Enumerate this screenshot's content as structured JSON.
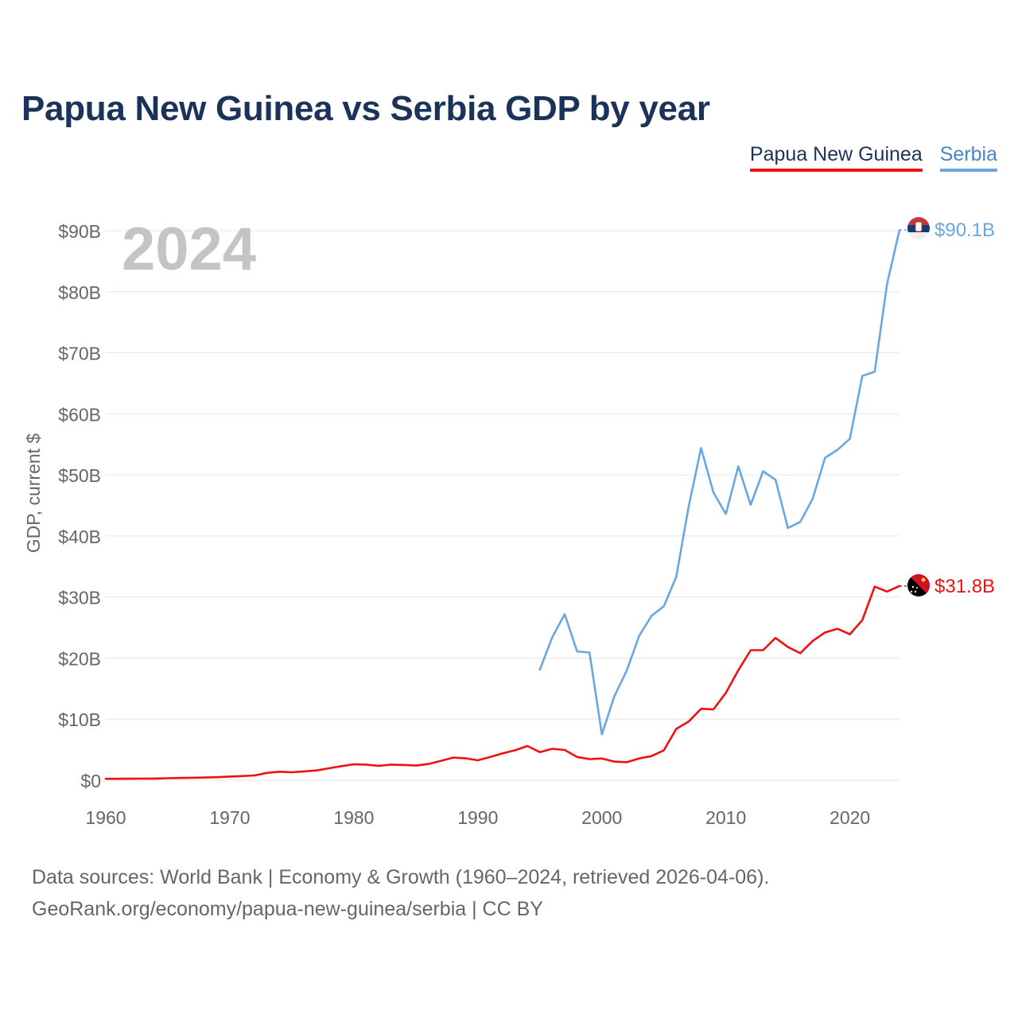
{
  "title": "Papua New Guinea vs Serbia GDP by year",
  "legend": [
    {
      "label": "Papua New Guinea",
      "color": "#ee1111"
    },
    {
      "label": "Serbia",
      "color": "#6aa7e0"
    }
  ],
  "source": {
    "line1": "Data sources: World Bank | Economy & Growth (1960–2024, retrieved 2026-04-06).",
    "line2": "GeoRank.org/economy/papua-new-guinea/serbia | CC BY"
  },
  "chart_data": {
    "type": "line",
    "title": "Papua New Guinea vs Serbia GDP by year",
    "year_label": "2024",
    "ylabel": "GDP, current $",
    "xlabel": "",
    "xlim": [
      1960,
      2024
    ],
    "ylim": [
      0,
      90
    ],
    "y_unit": "billions USD",
    "x_ticks": [
      1960,
      1970,
      1980,
      1990,
      2000,
      2010,
      2020
    ],
    "y_ticks": [
      0,
      10,
      20,
      30,
      40,
      50,
      60,
      70,
      80,
      90
    ],
    "y_tick_labels": [
      "$0",
      "$10B",
      "$20B",
      "$30B",
      "$40B",
      "$50B",
      "$60B",
      "$70B",
      "$80B",
      "$90B"
    ],
    "series": [
      {
        "name": "Papua New Guinea",
        "color": "#ee1111",
        "end_label": "$31.8B",
        "x": [
          1960,
          1961,
          1962,
          1963,
          1964,
          1965,
          1966,
          1967,
          1968,
          1969,
          1970,
          1971,
          1972,
          1973,
          1974,
          1975,
          1976,
          1977,
          1978,
          1979,
          1980,
          1981,
          1982,
          1983,
          1984,
          1985,
          1986,
          1987,
          1988,
          1989,
          1990,
          1991,
          1992,
          1993,
          1994,
          1995,
          1996,
          1997,
          1998,
          1999,
          2000,
          2001,
          2002,
          2003,
          2004,
          2005,
          2006,
          2007,
          2008,
          2009,
          2010,
          2011,
          2012,
          2013,
          2014,
          2015,
          2016,
          2017,
          2018,
          2019,
          2020,
          2021,
          2022,
          2023,
          2024
        ],
        "values": [
          0.23,
          0.24,
          0.25,
          0.26,
          0.28,
          0.32,
          0.36,
          0.4,
          0.44,
          0.5,
          0.6,
          0.68,
          0.78,
          1.2,
          1.4,
          1.3,
          1.45,
          1.6,
          1.95,
          2.3,
          2.6,
          2.55,
          2.35,
          2.55,
          2.5,
          2.4,
          2.65,
          3.15,
          3.7,
          3.6,
          3.25,
          3.8,
          4.4,
          4.9,
          5.6,
          4.6,
          5.15,
          4.95,
          3.8,
          3.45,
          3.55,
          3.05,
          2.95,
          3.55,
          3.95,
          4.9,
          8.4,
          9.6,
          11.7,
          11.6,
          14.3,
          18.0,
          21.3,
          21.3,
          23.3,
          21.8,
          20.8,
          22.8,
          24.2,
          24.8,
          23.9,
          26.2,
          31.7,
          30.9,
          31.8
        ]
      },
      {
        "name": "Serbia",
        "color": "#6aa7e0",
        "end_label": "$90.1B",
        "x": [
          1995,
          1996,
          1997,
          1998,
          1999,
          2000,
          2001,
          2002,
          2003,
          2004,
          2005,
          2006,
          2007,
          2008,
          2009,
          2010,
          2011,
          2012,
          2013,
          2014,
          2015,
          2016,
          2017,
          2018,
          2019,
          2020,
          2021,
          2022,
          2023,
          2024
        ],
        "values": [
          18.1,
          23.4,
          27.2,
          21.1,
          20.9,
          7.5,
          13.7,
          17.9,
          23.6,
          26.9,
          28.5,
          33.3,
          44.8,
          54.4,
          47.1,
          43.6,
          51.4,
          45.1,
          50.6,
          49.2,
          41.3,
          42.3,
          46.1,
          52.8,
          54.1,
          55.9,
          66.2,
          66.9,
          81.3,
          90.1
        ]
      }
    ]
  }
}
